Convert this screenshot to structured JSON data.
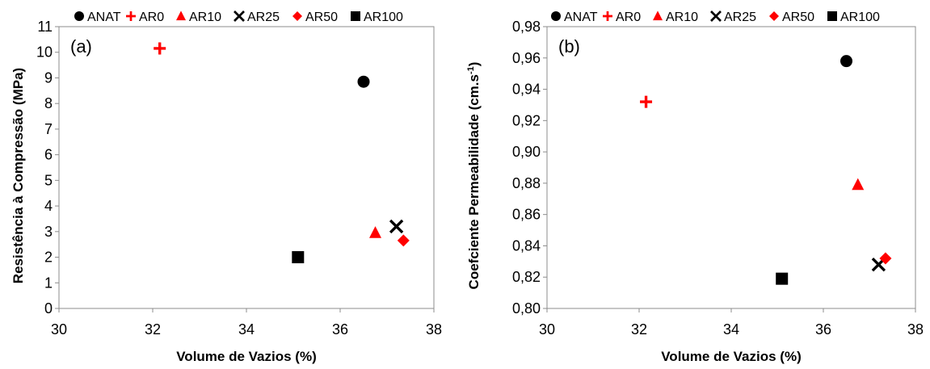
{
  "chart_data": [
    {
      "type": "scatter",
      "panel_label": "(a)",
      "xlabel": "Volume de Vazios (%)",
      "ylabel": "Resistência à Compressão (MPa)",
      "xlim": [
        30,
        38
      ],
      "ylim": [
        0,
        11
      ],
      "xticks": [
        "30",
        "32",
        "34",
        "36",
        "38"
      ],
      "yticks": [
        "0",
        "1",
        "2",
        "3",
        "4",
        "5",
        "6",
        "7",
        "8",
        "9",
        "10",
        "11"
      ],
      "grid": false,
      "legend_position": "top",
      "series": [
        {
          "name": "ANAT",
          "x": 36.5,
          "y": 8.85,
          "marker": "circle",
          "color": "#000000"
        },
        {
          "name": "AR0",
          "x": 32.15,
          "y": 10.15,
          "marker": "plus",
          "color": "#ff0000"
        },
        {
          "name": "AR10",
          "x": 36.75,
          "y": 2.95,
          "marker": "triangle",
          "color": "#ff0000"
        },
        {
          "name": "AR25",
          "x": 37.2,
          "y": 3.2,
          "marker": "x",
          "color": "#000000"
        },
        {
          "name": "AR50",
          "x": 37.35,
          "y": 2.65,
          "marker": "diamond",
          "color": "#ff0000"
        },
        {
          "name": "AR100",
          "x": 35.1,
          "y": 2.0,
          "marker": "square",
          "color": "#000000"
        }
      ]
    },
    {
      "type": "scatter",
      "panel_label": "(b)",
      "xlabel": "Volume de Vazios (%)",
      "ylabel": "Coefciente Permeabilidade (cm.s",
      "ylabel_sup": "-1",
      "ylabel_end": ")",
      "xlim": [
        30,
        38
      ],
      "ylim": [
        0.8,
        0.98
      ],
      "xticks": [
        "30",
        "32",
        "34",
        "36",
        "38"
      ],
      "yticks": [
        "0,80",
        "0,82",
        "0,84",
        "0,86",
        "0,88",
        "0,90",
        "0,92",
        "0,94",
        "0,96",
        "0,98"
      ],
      "grid": false,
      "legend_position": "top",
      "series": [
        {
          "name": "ANAT",
          "x": 36.5,
          "y": 0.958,
          "marker": "circle",
          "color": "#000000"
        },
        {
          "name": "AR0",
          "x": 32.15,
          "y": 0.932,
          "marker": "plus",
          "color": "#ff0000"
        },
        {
          "name": "AR10",
          "x": 36.75,
          "y": 0.879,
          "marker": "triangle",
          "color": "#ff0000"
        },
        {
          "name": "AR25",
          "x": 37.2,
          "y": 0.828,
          "marker": "x",
          "color": "#000000"
        },
        {
          "name": "AR50",
          "x": 37.35,
          "y": 0.832,
          "marker": "diamond",
          "color": "#ff0000"
        },
        {
          "name": "AR100",
          "x": 35.1,
          "y": 0.819,
          "marker": "square",
          "color": "#000000"
        }
      ]
    }
  ]
}
